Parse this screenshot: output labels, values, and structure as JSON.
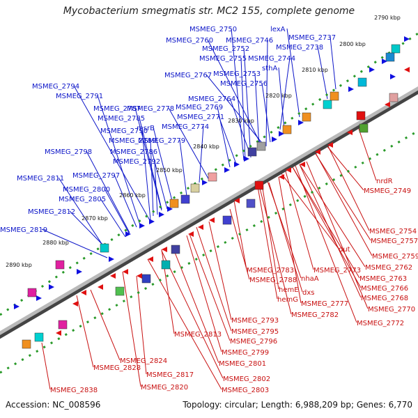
{
  "title": "Mycobacterium smegmatis str. MC2 155, complete genome",
  "accession_line": "Accession: NC_008596",
  "summary_line": "Topology: circular; Length: 6,988,209 bp; Genes: 6,770",
  "colors": {
    "backbone": "#8a8a8a",
    "plus_strand_label": "#0b14c8",
    "minus_strand_label": "#c81010",
    "tick_ring": "#2a9a2a",
    "plus_feature": "#1010e0",
    "minus_feature": "#e01010"
  },
  "kbp_ticks": [
    "2790 kbp",
    "2800 kbp",
    "2810 kbp",
    "2820 kbp",
    "2830 kbp",
    "2840 kbp",
    "2850 kbp",
    "2860 kbp",
    "2870 kbp",
    "2880 kbp",
    "2890 kbp"
  ],
  "plus_strand_genes": [
    "MSMEG_2750",
    "lexA",
    "MSMEG_2737",
    "MSMEG_2760",
    "MSMEG_2746",
    "MSMEG_2752",
    "MSMEG_2738",
    "MSMEG_2755",
    "MSMEG_2744",
    "sthA",
    "MSMEG_2767",
    "MSMEG_2753",
    "MSMEG_2756",
    "MSMEG_2794",
    "MSMEG_2791",
    "MSMEG_2787",
    "MSMEG_2778",
    "MSMEG_2764",
    "MSMEG_2785",
    "MSMEG_2769",
    "MSMEG_2771",
    "msrB",
    "MSMEG_2774",
    "MSMEG_2790",
    "MSMEG_2789",
    "MSMEG_2779",
    "MSMEG_2798",
    "MSMEG_2786",
    "MSMEG_2792",
    "MSMEG_2811",
    "MSMEG_2797",
    "MSMEG_2800",
    "MSMEG_2805",
    "MSMEG_2812",
    "MSMEG_2819"
  ],
  "minus_strand_genes": [
    "nrdR",
    "MSMEG_2749",
    "MSMEG_2754",
    "MSMEG_2757",
    "dut",
    "MSMEG_2759",
    "MSMEG_2762",
    "MSMEG_2763",
    "MSMEG_2783",
    "MSMEG_2773",
    "MSMEG_2766",
    "MSMEG_2788",
    "nhaA",
    "MSMEG_2768",
    "hemE",
    "dxs",
    "hemG",
    "MSMEG_2777",
    "MSMEG_2770",
    "MSMEG_2782",
    "MSMEG_2772",
    "MSMEG_2793",
    "MSMEG_2795",
    "MSMEG_2813",
    "MSMEG_2796",
    "MSMEG_2799",
    "MSMEG_2824",
    "MSMEG_2801",
    "MSMEG_2828",
    "MSMEG_2817",
    "MSMEG_2802",
    "MSMEG_2820",
    "MSMEG_2803",
    "MSMEG_2838"
  ]
}
